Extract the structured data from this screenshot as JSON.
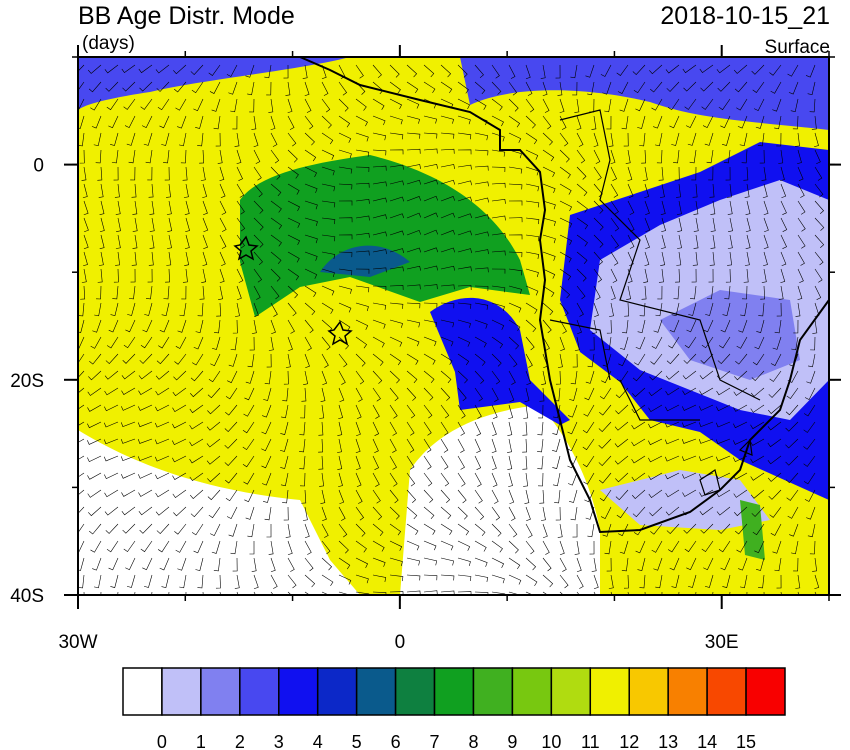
{
  "header": {
    "title": "BB Age Distr. Mode",
    "units": "(days)",
    "time": "2018-10-15_21",
    "level": "Surface"
  },
  "map": {
    "lon_range": [
      -30,
      40
    ],
    "lat_range": [
      -40,
      10
    ],
    "lat_ticks": [
      {
        "value": 0,
        "label": "0"
      },
      {
        "value": -20,
        "label": "20S"
      },
      {
        "value": -40,
        "label": "40S"
      }
    ],
    "lon_ticks": [
      {
        "value": -30,
        "label": "30W"
      },
      {
        "value": 0,
        "label": "0"
      },
      {
        "value": 30,
        "label": "30E"
      }
    ]
  },
  "colorbar": {
    "colors": [
      "#ffffff",
      "#c0c0f8",
      "#8080f0",
      "#4848f0",
      "#1010f0",
      "#0c28c8",
      "#0a5a8c",
      "#0e8040",
      "#10a020",
      "#40b020",
      "#78c810",
      "#b0dc10",
      "#f0f000",
      "#f8c800",
      "#f88000",
      "#f84800",
      "#f80000"
    ],
    "levels": [
      0,
      1,
      2,
      3,
      4,
      5,
      6,
      7,
      8,
      9,
      10,
      11,
      12,
      13,
      14,
      15
    ]
  }
}
